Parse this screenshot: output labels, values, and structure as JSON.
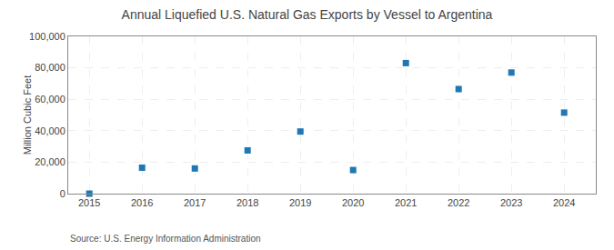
{
  "chart_data": {
    "type": "scatter",
    "title": "Annual Liquefied U.S. Natural Gas Exports by Vessel to Argentina",
    "ylabel": "Million Cubic Feet",
    "annotations": [
      "Source: U.S. Energy Information Administration"
    ],
    "x": [
      2015,
      2016,
      2017,
      2018,
      2019,
      2020,
      2021,
      2022,
      2023,
      2024
    ],
    "values": [
      0,
      16500,
      16000,
      27500,
      39500,
      15000,
      83000,
      66500,
      77000,
      51500
    ],
    "marker": "square",
    "xlim": [
      2014.6,
      2024.6
    ],
    "xticks": [
      2015,
      2016,
      2017,
      2018,
      2019,
      2020,
      2021,
      2022,
      2023,
      2024
    ],
    "ylim": [
      0,
      100000
    ],
    "yticks": [
      0,
      {
        "value": 20000,
        "label": "20,000"
      },
      {
        "value": 40000,
        "label": "40,000"
      },
      {
        "value": 60000,
        "label": "60,000"
      },
      {
        "value": 80000,
        "label": "80,000"
      },
      {
        "value": 100000,
        "label": "100,000"
      }
    ],
    "grid": true
  }
}
